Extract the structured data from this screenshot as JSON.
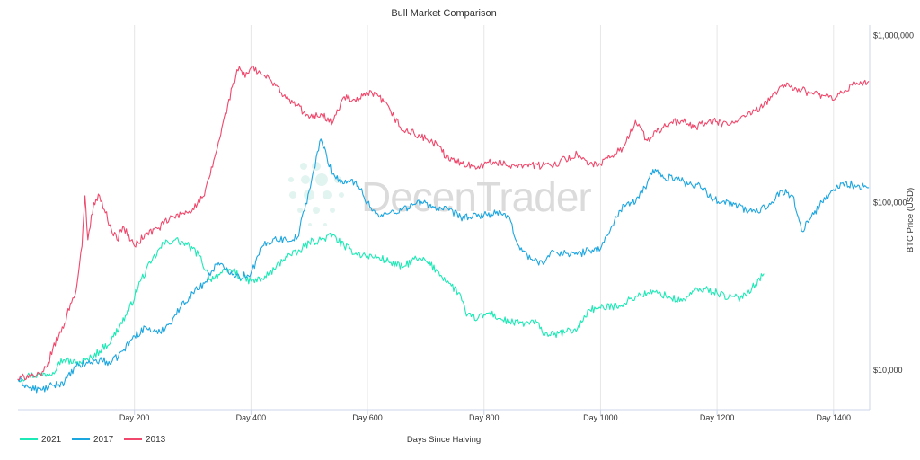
{
  "chart_data": {
    "type": "line",
    "title": "Bull Market Comparison",
    "xlabel": "Days Since Halving",
    "ylabel": "BTC Price (USD)",
    "yscale": "log",
    "xlim": [
      0,
      1462
    ],
    "ylim": [
      5800,
      1150000
    ],
    "x_ticks": [
      200,
      400,
      600,
      800,
      1000,
      1200,
      1400
    ],
    "x_tick_labels": [
      "Day 200",
      "Day 400",
      "Day 600",
      "Day 800",
      "Day 1000",
      "Day 1200",
      "Day 1400"
    ],
    "y_ticks": [
      10000,
      100000,
      1000000
    ],
    "y_tick_labels": [
      "$10,000",
      "$100,000",
      "$1,000,000"
    ],
    "grid": "vertical",
    "legend_position": "bottom-left",
    "watermark": "DecenTrader",
    "series": [
      {
        "name": "2021",
        "color": "#1de9b6",
        "x": [
          0,
          20,
          40,
          60,
          70,
          80,
          100,
          120,
          140,
          160,
          175,
          190,
          210,
          230,
          250,
          270,
          290,
          310,
          330,
          350,
          370,
          380,
          400,
          420,
          440,
          460,
          480,
          500,
          520,
          540,
          560,
          580,
          600,
          620,
          640,
          660,
          680,
          700,
          720,
          740,
          760,
          770,
          790,
          810,
          830,
          850,
          870,
          890,
          900,
          920,
          940,
          960,
          980,
          1000,
          1020,
          1040,
          1060,
          1080,
          1100,
          1120,
          1140,
          1160,
          1180,
          1200,
          1220,
          1240,
          1260,
          1280
        ],
        "y": [
          8800,
          9300,
          9400,
          9700,
          11200,
          11500,
          11000,
          11500,
          13000,
          15000,
          18500,
          22500,
          34000,
          45000,
          57000,
          60000,
          56000,
          49000,
          35000,
          38000,
          40000,
          36000,
          34000,
          35000,
          40000,
          48000,
          50000,
          58000,
          60000,
          64000,
          55000,
          50000,
          48000,
          47000,
          44000,
          41000,
          46000,
          45000,
          39000,
          33000,
          28000,
          21000,
          20500,
          22000,
          20000,
          19200,
          19000,
          19400,
          16800,
          16200,
          16900,
          17500,
          23000,
          23400,
          24000,
          25000,
          27500,
          28800,
          29000,
          27000,
          25800,
          29500,
          30500,
          29000,
          27200,
          27000,
          31000,
          37500
        ]
      },
      {
        "name": "2017",
        "color": "#1ca6e0",
        "x": [
          0,
          20,
          40,
          60,
          80,
          100,
          120,
          140,
          160,
          180,
          200,
          220,
          240,
          260,
          280,
          300,
          320,
          340,
          360,
          380,
          400,
          420,
          440,
          460,
          480,
          500,
          520,
          530,
          540,
          560,
          580,
          600,
          620,
          640,
          660,
          680,
          700,
          720,
          740,
          760,
          780,
          800,
          820,
          840,
          860,
          880,
          900,
          920,
          940,
          960,
          980,
          1000,
          1020,
          1040,
          1060,
          1080,
          1090,
          1110,
          1130,
          1150,
          1170,
          1190,
          1210,
          1230,
          1250,
          1270,
          1290,
          1310,
          1330,
          1345,
          1360,
          1380,
          1400,
          1420,
          1440,
          1460
        ],
        "y": [
          8800,
          7800,
          7600,
          8100,
          8500,
          10500,
          11000,
          11500,
          11000,
          13000,
          16000,
          18000,
          16500,
          19000,
          24000,
          29000,
          33000,
          43000,
          40000,
          36000,
          38000,
          55000,
          61000,
          60000,
          62000,
          118000,
          240000,
          190000,
          148000,
          130000,
          135000,
          100000,
          82000,
          88000,
          91000,
          98000,
          100000,
          92000,
          90000,
          82000,
          82000,
          85000,
          86000,
          84000,
          55000,
          46000,
          44000,
          51000,
          50000,
          49000,
          52000,
          53000,
          73000,
          98000,
          100000,
          130000,
          158000,
          140000,
          142000,
          128000,
          129000,
          106000,
          102000,
          98000,
          90000,
          88000,
          99000,
          118000,
          110000,
          68000,
          80000,
          101000,
          120000,
          132000,
          125000,
          123000
        ]
      },
      {
        "name": "2013",
        "color": "#f0486c",
        "x": [
          0,
          20,
          30,
          40,
          50,
          60,
          70,
          80,
          90,
          100,
          110,
          115,
          120,
          130,
          140,
          160,
          170,
          180,
          200,
          220,
          240,
          260,
          280,
          300,
          320,
          340,
          360,
          370,
          380,
          390,
          400,
          420,
          440,
          460,
          480,
          500,
          520,
          540,
          560,
          580,
          600,
          620,
          640,
          660,
          680,
          700,
          720,
          740,
          760,
          780,
          800,
          820,
          840,
          860,
          880,
          900,
          920,
          940,
          960,
          980,
          1000,
          1020,
          1040,
          1060,
          1080,
          1100,
          1120,
          1140,
          1160,
          1180,
          1200,
          1220,
          1240,
          1260,
          1280,
          1300,
          1320,
          1330,
          1340,
          1360,
          1380,
          1400,
          1420,
          1440,
          1460
        ],
        "y": [
          8800,
          9400,
          9200,
          9300,
          10500,
          13500,
          16000,
          19000,
          25000,
          30000,
          55000,
          110000,
          60000,
          100000,
          110000,
          70000,
          60000,
          72000,
          55000,
          65000,
          70000,
          80000,
          85000,
          92000,
          110000,
          200000,
          380000,
          520000,
          650000,
          560000,
          640000,
          580000,
          520000,
          420000,
          380000,
          320000,
          340000,
          300000,
          430000,
          400000,
          450000,
          430000,
          350000,
          270000,
          260000,
          240000,
          220000,
          180000,
          175000,
          165000,
          170000,
          176000,
          166000,
          170000,
          168000,
          166000,
          170000,
          182000,
          195000,
          168000,
          170000,
          190000,
          215000,
          310000,
          235000,
          270000,
          300000,
          310000,
          280000,
          300000,
          305000,
          290000,
          320000,
          340000,
          380000,
          460000,
          520000,
          470000,
          480000,
          450000,
          440000,
          410000,
          470000,
          520000,
          530000
        ]
      }
    ]
  }
}
